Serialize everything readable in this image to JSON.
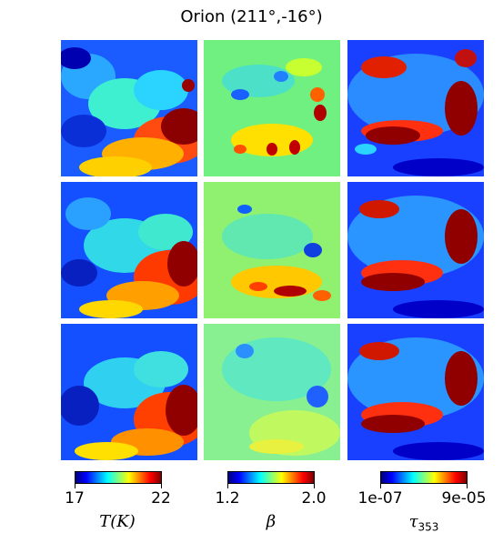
{
  "figure": {
    "title": "Orion (211°,-16°)",
    "grid": {
      "rows": 3,
      "cols": 3
    }
  },
  "colorbars": [
    {
      "colormap": "jet",
      "min_label": "17",
      "max_label": "22",
      "quantity_symbol": "T",
      "quantity_unit": "(K)"
    },
    {
      "colormap": "jet",
      "min_label": "1.2",
      "max_label": "2.0",
      "quantity_symbol": "β",
      "quantity_unit": ""
    },
    {
      "colormap": "jet",
      "min_label": "1e-07",
      "max_label": "9e-05",
      "quantity_symbol": "τ",
      "quantity_sub": "353"
    }
  ],
  "colors": {
    "jet_start": "#00007f",
    "jet_end": "#7f0000"
  }
}
